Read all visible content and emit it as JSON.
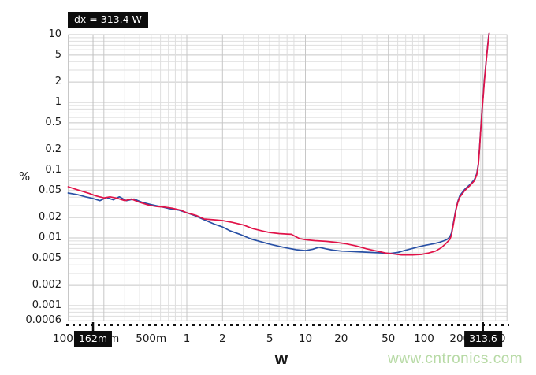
{
  "watermark": {
    "text": "www.cntronics.com",
    "color": "#b7daa5"
  },
  "chart_data": {
    "type": "line",
    "title": "",
    "grid": true,
    "x_axis": {
      "label": "W",
      "scale": "log",
      "range": [
        0.1,
        500
      ],
      "ticks": [
        {
          "v": 0.1,
          "label": "100m"
        },
        {
          "v": 0.2,
          "label": "200m"
        },
        {
          "v": 0.5,
          "label": "500m"
        },
        {
          "v": 1,
          "label": "1"
        },
        {
          "v": 2,
          "label": "2"
        },
        {
          "v": 5,
          "label": "5"
        },
        {
          "v": 10,
          "label": "10"
        },
        {
          "v": 20,
          "label": "20"
        },
        {
          "v": 50,
          "label": "50"
        },
        {
          "v": 100,
          "label": "100"
        },
        {
          "v": 200,
          "label": "200"
        },
        {
          "v": 400,
          "label": "400"
        }
      ]
    },
    "y_axis": {
      "label": "%",
      "scale": "log",
      "range": [
        0.0006,
        10
      ],
      "ticks": [
        {
          "v": 10,
          "label": "10"
        },
        {
          "v": 5,
          "label": "5"
        },
        {
          "v": 2,
          "label": "2"
        },
        {
          "v": 1,
          "label": "1"
        },
        {
          "v": 0.5,
          "label": "0.5"
        },
        {
          "v": 0.2,
          "label": "0.2"
        },
        {
          "v": 0.1,
          "label": "0.1"
        },
        {
          "v": 0.05,
          "label": "0.05"
        },
        {
          "v": 0.02,
          "label": "0.02"
        },
        {
          "v": 0.01,
          "label": "0.01"
        },
        {
          "v": 0.005,
          "label": "0.005"
        },
        {
          "v": 0.002,
          "label": "0.002"
        },
        {
          "v": 0.001,
          "label": "0.001"
        },
        {
          "v": 0.0006,
          "label": "0.0006"
        }
      ]
    },
    "cursors": {
      "dx_label": "dx = 313.4 W",
      "x1_W": 0.162,
      "x1_label": "162m",
      "x2_W": 313.6,
      "x2_label": "313.6"
    },
    "series": [
      {
        "name": "blue-trace",
        "color": "#2850a5",
        "points": [
          [
            0.1,
            0.046
          ],
          [
            0.12,
            0.0435
          ],
          [
            0.14,
            0.0405
          ],
          [
            0.16,
            0.0385
          ],
          [
            0.185,
            0.0355
          ],
          [
            0.21,
            0.0395
          ],
          [
            0.24,
            0.0365
          ],
          [
            0.27,
            0.0405
          ],
          [
            0.31,
            0.0355
          ],
          [
            0.36,
            0.0375
          ],
          [
            0.42,
            0.0335
          ],
          [
            0.5,
            0.031
          ],
          [
            0.6,
            0.029
          ],
          [
            0.7,
            0.0272
          ],
          [
            0.85,
            0.0258
          ],
          [
            1.0,
            0.0235
          ],
          [
            1.2,
            0.021
          ],
          [
            1.4,
            0.0185
          ],
          [
            1.7,
            0.016
          ],
          [
            2.0,
            0.0145
          ],
          [
            2.3,
            0.0128
          ],
          [
            2.8,
            0.0113
          ],
          [
            3.5,
            0.0096
          ],
          [
            4.2,
            0.0088
          ],
          [
            5.0,
            0.0081
          ],
          [
            6.0,
            0.0075
          ],
          [
            7.0,
            0.0071
          ],
          [
            8.4,
            0.0067
          ],
          [
            10,
            0.0065
          ],
          [
            11.5,
            0.0068
          ],
          [
            13,
            0.0073
          ],
          [
            15,
            0.0069
          ],
          [
            17,
            0.0066
          ],
          [
            20,
            0.0064
          ],
          [
            25,
            0.0063
          ],
          [
            30,
            0.0062
          ],
          [
            36,
            0.0061
          ],
          [
            45,
            0.006
          ],
          [
            52,
            0.0059
          ],
          [
            60,
            0.0061
          ],
          [
            68,
            0.0065
          ],
          [
            80,
            0.007
          ],
          [
            90,
            0.0074
          ],
          [
            103,
            0.0078
          ],
          [
            120,
            0.0082
          ],
          [
            135,
            0.0086
          ],
          [
            148,
            0.0091
          ],
          [
            158,
            0.0096
          ],
          [
            165,
            0.0104
          ],
          [
            170,
            0.0118
          ],
          [
            177,
            0.017
          ],
          [
            185,
            0.026
          ],
          [
            192,
            0.034
          ],
          [
            200,
            0.042
          ],
          [
            220,
            0.052
          ],
          [
            245,
            0.062
          ],
          [
            266,
            0.073
          ],
          [
            278,
            0.089
          ],
          [
            287,
            0.125
          ],
          [
            293,
            0.21
          ],
          [
            298,
            0.33
          ],
          [
            303,
            0.52
          ],
          [
            309,
            0.83
          ],
          [
            315,
            1.25
          ],
          [
            322,
            2.1
          ],
          [
            330,
            3.3
          ],
          [
            338,
            5.2
          ],
          [
            346,
            7.8
          ],
          [
            352,
            10.3
          ]
        ]
      },
      {
        "name": "red-trace",
        "color": "#e11248",
        "points": [
          [
            0.1,
            0.057
          ],
          [
            0.115,
            0.0525
          ],
          [
            0.13,
            0.049
          ],
          [
            0.15,
            0.0455
          ],
          [
            0.17,
            0.042
          ],
          [
            0.2,
            0.039
          ],
          [
            0.225,
            0.0405
          ],
          [
            0.26,
            0.0385
          ],
          [
            0.3,
            0.0355
          ],
          [
            0.34,
            0.0375
          ],
          [
            0.4,
            0.0335
          ],
          [
            0.48,
            0.0305
          ],
          [
            0.56,
            0.029
          ],
          [
            0.65,
            0.0285
          ],
          [
            0.75,
            0.0275
          ],
          [
            0.9,
            0.0255
          ],
          [
            1.0,
            0.0235
          ],
          [
            1.2,
            0.0215
          ],
          [
            1.4,
            0.019
          ],
          [
            1.7,
            0.0185
          ],
          [
            2.0,
            0.018
          ],
          [
            2.4,
            0.017
          ],
          [
            3.0,
            0.0155
          ],
          [
            3.6,
            0.0137
          ],
          [
            4.3,
            0.0127
          ],
          [
            5.0,
            0.012
          ],
          [
            6.0,
            0.0116
          ],
          [
            7.0,
            0.0114
          ],
          [
            7.6,
            0.0113
          ],
          [
            8.4,
            0.0103
          ],
          [
            9.0,
            0.0097
          ],
          [
            10,
            0.0094
          ],
          [
            12,
            0.0091
          ],
          [
            15,
            0.0089
          ],
          [
            18,
            0.0086
          ],
          [
            22,
            0.0082
          ],
          [
            27,
            0.0076
          ],
          [
            33,
            0.0069
          ],
          [
            40,
            0.0064
          ],
          [
            47,
            0.006
          ],
          [
            55,
            0.0058
          ],
          [
            65,
            0.0056
          ],
          [
            80,
            0.0056
          ],
          [
            95,
            0.0057
          ],
          [
            110,
            0.006
          ],
          [
            125,
            0.0064
          ],
          [
            140,
            0.0072
          ],
          [
            150,
            0.008
          ],
          [
            158,
            0.0088
          ],
          [
            165,
            0.0095
          ],
          [
            170,
            0.011
          ],
          [
            177,
            0.016
          ],
          [
            185,
            0.025
          ],
          [
            192,
            0.033
          ],
          [
            200,
            0.04
          ],
          [
            220,
            0.05
          ],
          [
            245,
            0.06
          ],
          [
            266,
            0.07
          ],
          [
            278,
            0.085
          ],
          [
            287,
            0.12
          ],
          [
            293,
            0.2
          ],
          [
            298,
            0.32
          ],
          [
            303,
            0.5
          ],
          [
            309,
            0.8
          ],
          [
            315,
            1.2
          ],
          [
            322,
            2.0
          ],
          [
            330,
            3.2
          ],
          [
            338,
            5.0
          ],
          [
            346,
            7.5
          ],
          [
            354,
            10.5
          ]
        ]
      }
    ]
  }
}
